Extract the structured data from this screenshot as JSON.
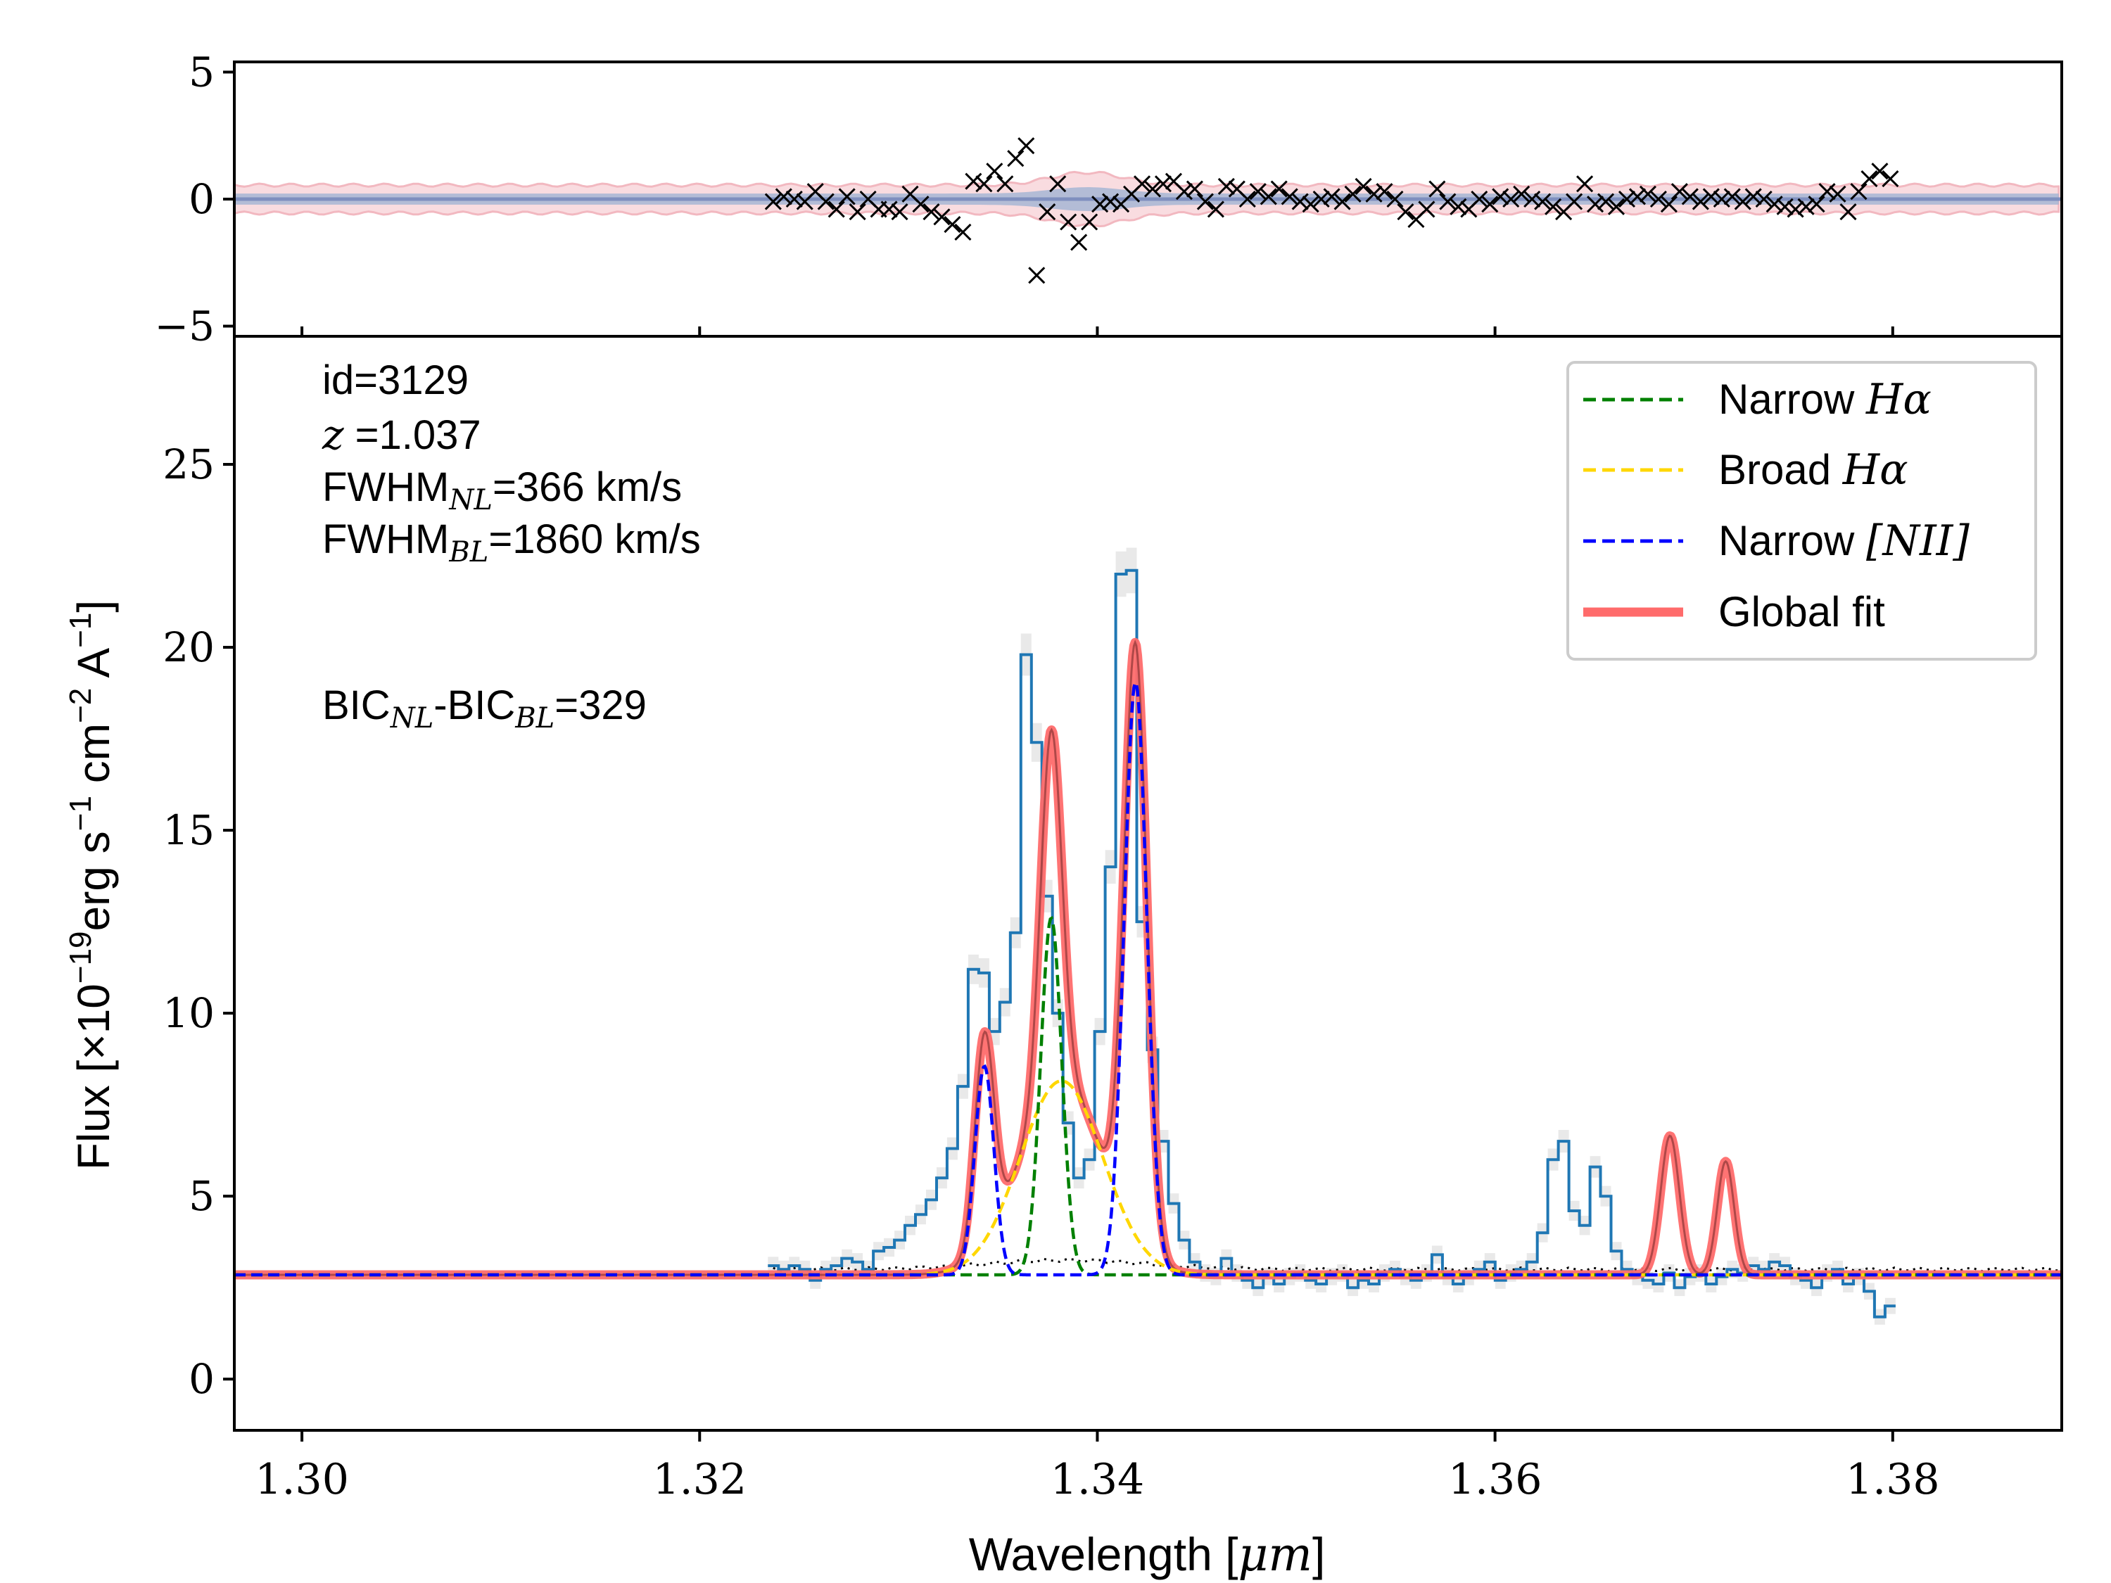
{
  "chart_data": [
    {
      "type": "scatter",
      "panel": "residuals",
      "xlim": [
        1.2966,
        1.3885
      ],
      "ylim": [
        -5.4,
        5.4
      ],
      "yticks": [
        -5,
        0,
        5
      ],
      "ytick_labels": [
        "−5",
        "0",
        "5"
      ],
      "xticks": [
        1.3,
        1.32,
        1.34,
        1.36,
        1.38
      ],
      "marker": "x",
      "colors": {
        "marker": "#000000",
        "band_outer": "#f7d3d8",
        "band_inner": "#a7b6d3",
        "centre_line": "#7f8fbf"
      },
      "x_start": 1.3237,
      "x_step": 0.00053,
      "residuals": [
        -0.1,
        0.1,
        0.0,
        -0.1,
        0.3,
        -0.1,
        -0.4,
        0.1,
        -0.5,
        0.0,
        -0.4,
        -0.4,
        -0.5,
        0.2,
        -0.2,
        -0.5,
        -0.7,
        -1.0,
        -1.3,
        0.7,
        0.6,
        1.1,
        0.6,
        1.6,
        2.1,
        -3.0,
        -0.5,
        0.6,
        -0.9,
        -1.7,
        -0.9,
        -0.2,
        -0.1,
        -0.2,
        0.2,
        0.6,
        0.4,
        0.6,
        0.7,
        0.3,
        0.4,
        -0.1,
        -0.4,
        0.5,
        0.4,
        0.0,
        0.3,
        0.1,
        0.4,
        0.1,
        -0.1,
        -0.2,
        0.0,
        0.1,
        -0.1,
        0.2,
        0.5,
        0.2,
        0.3,
        0.0,
        -0.5,
        -0.8,
        -0.4,
        0.4,
        -0.1,
        -0.3,
        -0.4,
        0.0,
        -0.2,
        0.1,
        0.0,
        0.2,
        0.0,
        -0.1,
        -0.3,
        -0.5,
        -0.1,
        0.6,
        -0.2,
        -0.1,
        -0.3,
        0.0,
        0.1,
        0.2,
        0.0,
        -0.2,
        0.3,
        0.1,
        -0.1,
        0.1,
        0.0,
        0.1,
        -0.1,
        0.1,
        0.0,
        -0.2,
        -0.3,
        -0.4,
        -0.3,
        -0.2,
        0.3,
        0.2,
        -0.5,
        0.3,
        0.8,
        1.1,
        0.8
      ]
    },
    {
      "type": "line",
      "panel": "spectrum",
      "xlabel_main": "Wavelength [",
      "xlabel_unit": "μm",
      "xlabel_close": "]",
      "ylabel_main": "Flux [×10",
      "ylabel_exp": "−19",
      "ylabel_units": "erg s",
      "ylabel_s_exp": "−1",
      "ylabel_cm": " cm",
      "ylabel_cm_exp": "−2",
      "ylabel_a": " A",
      "ylabel_a_exp": "−1",
      "ylabel_close": "]",
      "xlim": [
        1.2966,
        1.3885
      ],
      "ylim": [
        -1.4,
        28.5
      ],
      "xticks": [
        1.3,
        1.32,
        1.34,
        1.36,
        1.38
      ],
      "xtick_labels": [
        "1.30",
        "1.32",
        "1.34",
        "1.36",
        "1.38"
      ],
      "yticks": [
        0,
        5,
        10,
        15,
        20,
        25
      ],
      "ytick_labels": [
        "0",
        "5",
        "10",
        "15",
        "20",
        "25"
      ],
      "continuum": 2.85,
      "observed": {
        "x_start": 1.3237,
        "x_step": 0.00053,
        "flux": [
          3.1,
          3.0,
          3.1,
          3.0,
          2.7,
          3.0,
          3.1,
          3.3,
          3.2,
          3.0,
          3.5,
          3.6,
          3.8,
          4.2,
          4.5,
          4.9,
          5.5,
          6.3,
          8.0,
          11.2,
          11.1,
          9.5,
          10.3,
          12.2,
          19.8,
          17.4,
          13.2,
          10.0,
          7.0,
          5.5,
          6.0,
          9.5,
          14.0,
          22.0,
          22.1,
          12.5,
          9.0,
          6.5,
          4.8,
          3.8,
          3.2,
          2.9,
          2.8,
          3.3,
          2.9,
          2.7,
          2.5,
          2.8,
          2.6,
          2.8,
          2.9,
          2.7,
          2.6,
          2.8,
          2.9,
          2.5,
          2.7,
          2.6,
          2.9,
          3.0,
          2.8,
          2.7,
          2.9,
          3.4,
          2.8,
          2.6,
          2.8,
          3.0,
          3.2,
          2.7,
          2.9,
          3.0,
          3.2,
          4.0,
          6.0,
          6.5,
          4.6,
          4.2,
          5.8,
          5.0,
          3.5,
          3.0,
          2.8,
          2.7,
          2.6,
          2.9,
          2.5,
          2.8,
          2.9,
          2.6,
          2.8,
          3.0,
          2.9,
          3.1,
          3.0,
          3.2,
          3.1,
          2.8,
          2.7,
          2.5,
          2.9,
          3.0,
          2.6,
          2.8,
          2.4,
          1.7,
          2.0
        ]
      },
      "components": [
        {
          "id": "narrow_ha",
          "center": 1.33768,
          "sigma": 0.00053,
          "amplitude": 9.75
        },
        {
          "id": "broad_ha",
          "center": 1.3382,
          "sigma": 0.00208,
          "amplitude": 5.3
        },
        {
          "id": "nii_a",
          "center": 1.33432,
          "sigma": 0.00048,
          "amplitude": 5.7
        },
        {
          "id": "nii_b",
          "center": 1.34192,
          "sigma": 0.00057,
          "amplitude": 16.2
        },
        {
          "id": "second_a",
          "center": 1.3688,
          "sigma": 0.00047,
          "amplitude": 3.8
        },
        {
          "id": "second_b",
          "center": 1.3716,
          "sigma": 0.00042,
          "amplitude": 3.1
        }
      ],
      "colors": {
        "observed": "#1f77b4",
        "observed_band": "#e7e7e7",
        "narrow_ha": "#008000",
        "broad_ha": "#ffd700",
        "nii": "#0000ff",
        "global_fit": "#ff6b6b",
        "model_dark": "#7a2b2b",
        "continuum": "#000000"
      },
      "annotations": {
        "id": "id=3129",
        "z_symbol": "z",
        "z_value": " =1.037",
        "fwhm_nl_prefix": "FWHM",
        "fwhm_nl_sub": "NL",
        "fwhm_nl_value": "=366 km/s",
        "fwhm_bl_prefix": "FWHM",
        "fwhm_bl_sub": "BL",
        "fwhm_bl_value": "=1860 km/s",
        "bic_prefix": "BIC",
        "bic_sub1": "NL",
        "bic_mid": "-BIC",
        "bic_sub2": "BL",
        "bic_value": "=329"
      },
      "legend": {
        "position": "top-right",
        "entries": [
          {
            "label": "Narrow ",
            "math": "Hα",
            "style": "dashed",
            "color": "#008000"
          },
          {
            "label": "Broad ",
            "math": "Hα",
            "style": "dashed",
            "color": "#ffd700"
          },
          {
            "label": "Narrow ",
            "math": "[NII]",
            "style": "dashed",
            "color": "#0000ff"
          },
          {
            "label": "Global fit",
            "math": "",
            "style": "solid",
            "color": "#ff6b6b"
          }
        ]
      }
    }
  ]
}
